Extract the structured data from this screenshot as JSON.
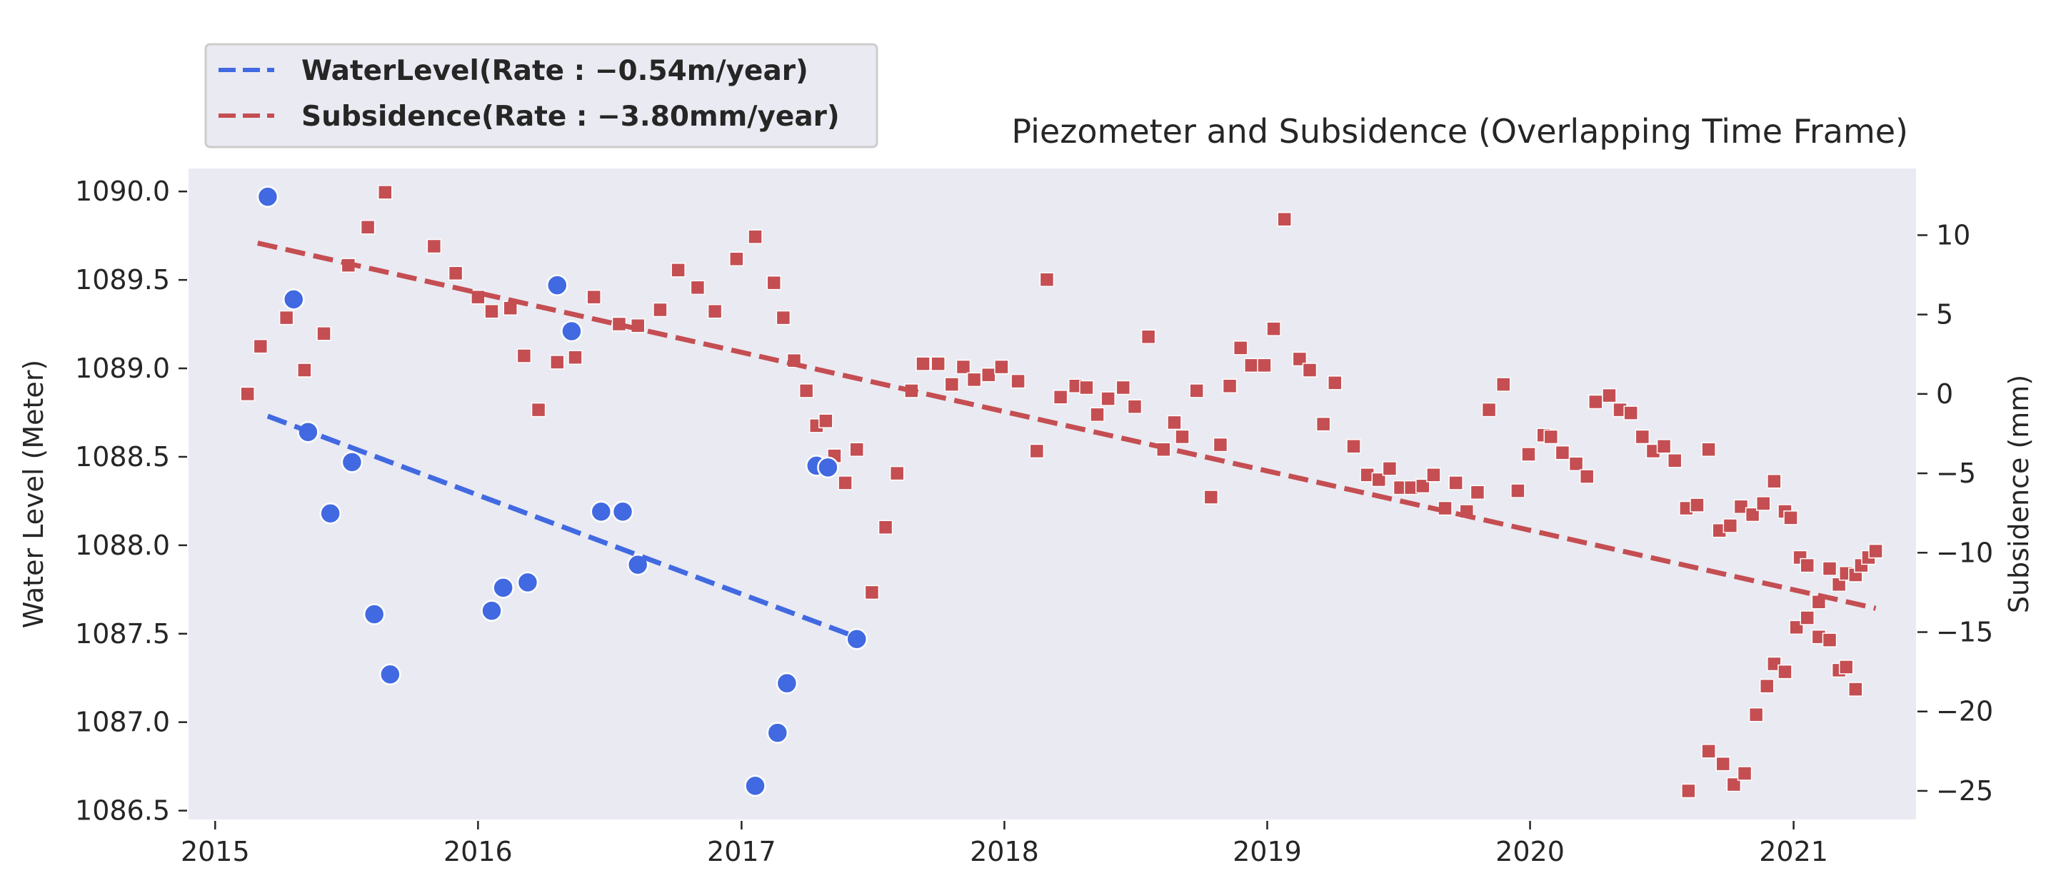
{
  "chart_data": {
    "type": "scatter",
    "title": "Piezometer and Subsidence (Overlapping Time Frame)",
    "xlabel": "",
    "ylabel": "Water Level (Meter)",
    "y2label": "Subsidence (mm)",
    "x_axis": {
      "type": "date",
      "ticks": [
        "2015",
        "2016",
        "2017",
        "2018",
        "2019",
        "2020",
        "2021"
      ],
      "range": [
        "2014-11-25",
        "2021-06-20"
      ]
    },
    "y_left": {
      "range": [
        1086.45,
        1090.13
      ],
      "ticks": [
        "1086.5",
        "1087.0",
        "1087.5",
        "1088.0",
        "1088.5",
        "1089.0",
        "1089.5",
        "1090.0"
      ]
    },
    "y_right": {
      "range": [
        -26.8,
        14.2
      ],
      "ticks": [
        "−25",
        "−20",
        "−15",
        "−10",
        "−5",
        "0",
        "5",
        "10"
      ]
    },
    "grid": false,
    "background": "#eaeaf2",
    "legend_position": "top-left, outside above plot",
    "series": [
      {
        "name": "WaterLevel",
        "axis": "left",
        "marker": "circle",
        "color": "#4169e1",
        "points": [
          [
            "2015-03-15",
            1089.97
          ],
          [
            "2015-04-20",
            1089.39
          ],
          [
            "2015-05-10",
            1088.64
          ],
          [
            "2015-06-10",
            1088.18
          ],
          [
            "2015-07-10",
            1088.47
          ],
          [
            "2015-08-10",
            1087.61
          ],
          [
            "2015-09-01",
            1087.27
          ],
          [
            "2016-01-20",
            1087.63
          ],
          [
            "2016-02-05",
            1087.76
          ],
          [
            "2016-03-10",
            1087.79
          ],
          [
            "2016-04-20",
            1089.47
          ],
          [
            "2016-05-10",
            1089.21
          ],
          [
            "2016-06-20",
            1088.19
          ],
          [
            "2016-07-20",
            1088.19
          ],
          [
            "2016-08-10",
            1087.89
          ],
          [
            "2017-01-20",
            1086.64
          ],
          [
            "2017-02-20",
            1086.94
          ],
          [
            "2017-03-05",
            1087.22
          ],
          [
            "2017-04-15",
            1088.45
          ],
          [
            "2017-05-01",
            1088.44
          ],
          [
            "2017-06-10",
            1087.47
          ]
        ],
        "trend": {
          "label": "WaterLevel(Rate : −0.54m/year)",
          "start": [
            "2015-03-15",
            1088.73
          ],
          "end": [
            "2017-06-10",
            1087.48
          ]
        }
      },
      {
        "name": "Subsidence",
        "axis": "right",
        "marker": "square",
        "color": "#c44e52",
        "points": [
          [
            "2015-02-15",
            0
          ],
          [
            "2015-03-05",
            3
          ],
          [
            "2015-04-10",
            4.8
          ],
          [
            "2015-05-05",
            1.5
          ],
          [
            "2015-06-01",
            3.8
          ],
          [
            "2015-07-05",
            8.1
          ],
          [
            "2015-08-01",
            10.5
          ],
          [
            "2015-08-25",
            12.7
          ],
          [
            "2015-11-01",
            9.3
          ],
          [
            "2015-12-01",
            7.6
          ],
          [
            "2016-01-01",
            6.1
          ],
          [
            "2016-01-20",
            5.2
          ],
          [
            "2016-02-15",
            5.4
          ],
          [
            "2016-03-05",
            2.4
          ],
          [
            "2016-03-25",
            -1
          ],
          [
            "2016-04-20",
            2
          ],
          [
            "2016-05-15",
            2.3
          ],
          [
            "2016-06-10",
            6.1
          ],
          [
            "2016-07-15",
            4.4
          ],
          [
            "2016-08-10",
            4.3
          ],
          [
            "2016-09-10",
            5.3
          ],
          [
            "2016-10-05",
            7.8
          ],
          [
            "2016-11-01",
            6.7
          ],
          [
            "2016-11-25",
            5.2
          ],
          [
            "2016-12-25",
            8.5
          ],
          [
            "2017-01-20",
            9.9
          ],
          [
            "2017-02-15",
            7
          ],
          [
            "2017-02-28",
            4.8
          ],
          [
            "2017-03-15",
            2.1
          ],
          [
            "2017-04-01",
            0.2
          ],
          [
            "2017-04-15",
            -2
          ],
          [
            "2017-04-28",
            -1.7
          ],
          [
            "2017-05-10",
            -3.9
          ],
          [
            "2017-05-25",
            -5.6
          ],
          [
            "2017-06-10",
            -3.5
          ],
          [
            "2017-07-01",
            -12.5
          ],
          [
            "2017-07-20",
            -8.4
          ],
          [
            "2017-08-05",
            -5
          ],
          [
            "2017-08-25",
            0.2
          ],
          [
            "2017-09-10",
            1.9
          ],
          [
            "2017-10-01",
            1.9
          ],
          [
            "2017-10-20",
            0.6
          ],
          [
            "2017-11-05",
            1.7
          ],
          [
            "2017-11-20",
            0.9
          ],
          [
            "2017-12-10",
            1.2
          ],
          [
            "2017-12-28",
            1.7
          ],
          [
            "2018-01-20",
            0.8
          ],
          [
            "2018-02-15",
            -3.6
          ],
          [
            "2018-03-01",
            7.2
          ],
          [
            "2018-03-20",
            -0.2
          ],
          [
            "2018-04-10",
            0.5
          ],
          [
            "2018-04-25",
            0.4
          ],
          [
            "2018-05-10",
            -1.3
          ],
          [
            "2018-05-25",
            -0.3
          ],
          [
            "2018-06-15",
            0.4
          ],
          [
            "2018-07-01",
            -0.8
          ],
          [
            "2018-07-20",
            3.6
          ],
          [
            "2018-08-10",
            -3.5
          ],
          [
            "2018-08-25",
            -1.8
          ],
          [
            "2018-09-05",
            -2.7
          ],
          [
            "2018-09-25",
            0.2
          ],
          [
            "2018-10-15",
            -6.5
          ],
          [
            "2018-10-28",
            -3.2
          ],
          [
            "2018-11-10",
            0.5
          ],
          [
            "2018-11-25",
            2.9
          ],
          [
            "2018-12-10",
            1.8
          ],
          [
            "2018-12-28",
            1.8
          ],
          [
            "2019-01-10",
            4.1
          ],
          [
            "2019-01-25",
            11
          ],
          [
            "2019-02-15",
            2.2
          ],
          [
            "2019-03-01",
            1.5
          ],
          [
            "2019-03-20",
            -1.9
          ],
          [
            "2019-04-05",
            0.7
          ],
          [
            "2019-05-01",
            -3.3
          ],
          [
            "2019-05-20",
            -5.1
          ],
          [
            "2019-06-05",
            -5.4
          ],
          [
            "2019-06-20",
            -4.7
          ],
          [
            "2019-07-05",
            -5.9
          ],
          [
            "2019-07-20",
            -5.9
          ],
          [
            "2019-08-05",
            -5.8
          ],
          [
            "2019-08-20",
            -5.1
          ],
          [
            "2019-09-05",
            -7.2
          ],
          [
            "2019-09-20",
            -5.6
          ],
          [
            "2019-10-05",
            -7.4
          ],
          [
            "2019-10-20",
            -6.2
          ],
          [
            "2019-11-05",
            -1
          ],
          [
            "2019-11-25",
            0.6
          ],
          [
            "2019-12-15",
            -6.1
          ],
          [
            "2019-12-30",
            -3.8
          ],
          [
            "2020-01-20",
            -2.6
          ],
          [
            "2020-01-30",
            -2.7
          ],
          [
            "2020-02-15",
            -3.7
          ],
          [
            "2020-03-05",
            -4.4
          ],
          [
            "2020-03-20",
            -5.2
          ],
          [
            "2020-04-01",
            -0.5
          ],
          [
            "2020-04-20",
            -0.1
          ],
          [
            "2020-05-05",
            -1
          ],
          [
            "2020-05-20",
            -1.2
          ],
          [
            "2020-06-05",
            -2.7
          ],
          [
            "2020-06-20",
            -3.6
          ],
          [
            "2020-07-05",
            -3.3
          ],
          [
            "2020-07-20",
            -4.2
          ],
          [
            "2020-08-05",
            -7.2
          ],
          [
            "2020-08-20",
            -7
          ],
          [
            "2020-09-05",
            -3.5
          ],
          [
            "2020-09-20",
            -8.6
          ],
          [
            "2020-10-05",
            -8.3
          ],
          [
            "2020-10-20",
            -7.1
          ],
          [
            "2020-11-05",
            -7.6
          ],
          [
            "2020-11-20",
            -6.9
          ],
          [
            "2020-12-05",
            -5.5
          ],
          [
            "2020-12-20",
            -7.4
          ],
          [
            "2020-12-28",
            -7.8
          ],
          [
            "2021-01-10",
            -10.3
          ],
          [
            "2021-01-20",
            -10.8
          ],
          [
            "2021-02-05",
            -15.3
          ],
          [
            "2021-02-20",
            -15.5
          ],
          [
            "2021-03-05",
            -17.4
          ],
          [
            "2021-03-15",
            -17.2
          ],
          [
            "2021-03-28",
            -18.6
          ],
          [
            "2020-08-08",
            -25
          ],
          [
            "2020-09-05",
            -22.5
          ],
          [
            "2020-09-25",
            -23.3
          ],
          [
            "2020-10-10",
            -24.6
          ],
          [
            "2020-10-25",
            -23.9
          ],
          [
            "2020-11-10",
            -20.2
          ],
          [
            "2020-11-25",
            -18.4
          ],
          [
            "2020-12-05",
            -17
          ],
          [
            "2020-12-20",
            -17.5
          ],
          [
            "2021-01-05",
            -14.7
          ],
          [
            "2021-01-20",
            -14.1
          ],
          [
            "2021-02-05",
            -13.1
          ],
          [
            "2021-02-20",
            -11
          ],
          [
            "2021-03-05",
            -12
          ],
          [
            "2021-03-15",
            -11.3
          ],
          [
            "2021-03-28",
            -11.4
          ],
          [
            "2021-04-05",
            -10.8
          ],
          [
            "2021-04-15",
            -10.3
          ],
          [
            "2021-04-25",
            -9.9
          ]
        ],
        "trend": {
          "label": "Subsidence(Rate : −3.80mm/year)",
          "start": [
            "2015-03-01",
            9.5
          ],
          "end": [
            "2021-04-25",
            -13.5
          ]
        }
      }
    ]
  }
}
